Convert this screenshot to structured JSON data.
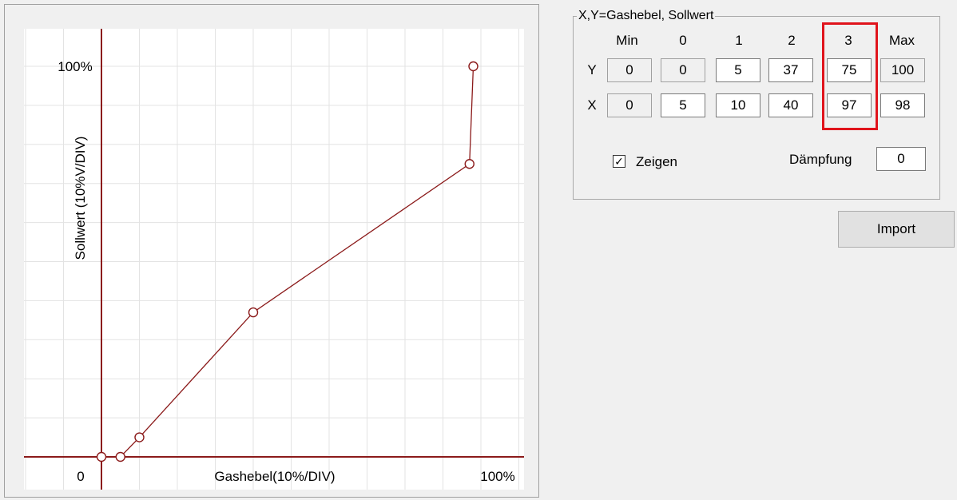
{
  "chart_data": {
    "type": "line",
    "x": [
      0,
      5,
      10,
      40,
      97,
      98
    ],
    "y": [
      0,
      0,
      5,
      37,
      75,
      100
    ],
    "xlim": [
      0,
      100
    ],
    "ylim": [
      0,
      100
    ],
    "xlabel": "Gashebel(10%/DIV)",
    "ylabel": "Sollwert (10%V/DIV)",
    "origin_label": "0",
    "x_end_label": "100%",
    "y_end_label": "100%",
    "grid": true,
    "markers": "open-circle",
    "colors": {
      "axis": "#8b1a1a",
      "line": "#8b1a1a",
      "grid": "#e3e3e3"
    }
  },
  "group": {
    "title": "X,Y=Gashebel, Sollwert",
    "columns": [
      "Min",
      "0",
      "1",
      "2",
      "3",
      "Max"
    ],
    "row_labels": {
      "y": "Y",
      "x": "X"
    },
    "y_values": [
      "0",
      "0",
      "5",
      "37",
      "75",
      "100"
    ],
    "x_values": [
      "0",
      "5",
      "10",
      "40",
      "97",
      "98"
    ],
    "highlight_color": "#e0141c"
  },
  "options": {
    "show_checked": true,
    "show_label": "Zeigen",
    "damping_label": "Dämpfung",
    "damping_value": "0"
  },
  "import_label": "Import"
}
